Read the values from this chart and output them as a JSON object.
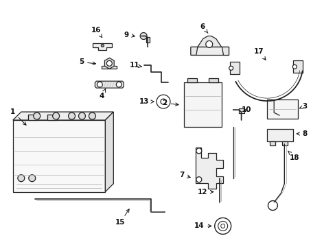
{
  "bg_color": "#ffffff",
  "line_color": "#222222",
  "label_color": "#111111",
  "fig_width": 4.89,
  "fig_height": 3.6,
  "dpi": 100
}
